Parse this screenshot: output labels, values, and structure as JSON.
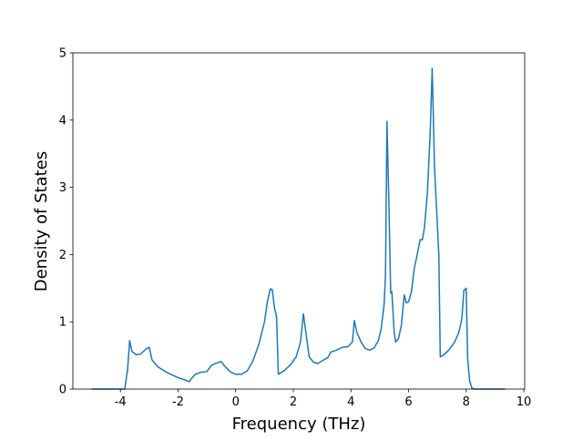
{
  "chart_data": {
    "type": "line",
    "xlabel": "Frequency (THz)",
    "ylabel": "Density of States",
    "x": [
      -5,
      -3.85,
      -3.75,
      -3.68,
      -3.6,
      -3.45,
      -3.3,
      -3.1,
      -3.0,
      -2.9,
      -2.7,
      -2.4,
      -2.0,
      -1.6,
      -1.55,
      -1.4,
      -1.2,
      -1.0,
      -0.85,
      -0.7,
      -0.5,
      -0.4,
      -0.2,
      0,
      0.2,
      0.4,
      0.6,
      0.8,
      1.0,
      1.1,
      1.2,
      1.27,
      1.35,
      1.42,
      1.48,
      1.7,
      1.9,
      2.1,
      2.25,
      2.35,
      2.45,
      2.55,
      2.7,
      2.85,
      3.0,
      3.2,
      3.3,
      3.5,
      3.7,
      3.9,
      4.05,
      4.12,
      4.2,
      4.35,
      4.5,
      4.65,
      4.8,
      4.95,
      5.05,
      5.15,
      5.2,
      5.25,
      5.32,
      5.38,
      5.42,
      5.5,
      5.55,
      5.65,
      5.75,
      5.85,
      5.92,
      6.0,
      6.1,
      6.2,
      6.3,
      6.4,
      6.48,
      6.55,
      6.65,
      6.75,
      6.82,
      6.9,
      7.05,
      7.1,
      7.2,
      7.4,
      7.6,
      7.75,
      7.85,
      7.92,
      8.0,
      8.05,
      8.12,
      8.2,
      8.3,
      9.35
    ],
    "series": [
      {
        "color": "#1f77b4",
        "values": [
          0,
          0,
          0.3,
          0.72,
          0.56,
          0.51,
          0.52,
          0.6,
          0.62,
          0.43,
          0.33,
          0.25,
          0.17,
          0.11,
          0.15,
          0.22,
          0.25,
          0.26,
          0.35,
          0.38,
          0.41,
          0.35,
          0.26,
          0.22,
          0.22,
          0.27,
          0.42,
          0.66,
          1.0,
          1.3,
          1.49,
          1.48,
          1.2,
          1.07,
          0.22,
          0.28,
          0.36,
          0.48,
          0.7,
          1.12,
          0.8,
          0.48,
          0.4,
          0.38,
          0.42,
          0.47,
          0.55,
          0.58,
          0.62,
          0.63,
          0.7,
          1.02,
          0.85,
          0.7,
          0.6,
          0.58,
          0.61,
          0.72,
          0.9,
          1.25,
          1.7,
          3.98,
          2.7,
          1.43,
          1.45,
          0.85,
          0.7,
          0.75,
          0.95,
          1.4,
          1.28,
          1.3,
          1.45,
          1.8,
          2.0,
          2.22,
          2.22,
          2.4,
          2.9,
          3.8,
          4.77,
          3.3,
          2.0,
          0.48,
          0.5,
          0.58,
          0.7,
          0.85,
          1.05,
          1.47,
          1.5,
          0.45,
          0.12,
          0.01,
          0,
          0
        ]
      }
    ],
    "xlim": [
      -5.65,
      10.03
    ],
    "ylim": [
      0,
      5
    ],
    "xticks": [
      -4,
      -2,
      0,
      2,
      4,
      6,
      8,
      10
    ],
    "yticks": [
      0,
      1,
      2,
      3,
      4,
      5
    ]
  }
}
